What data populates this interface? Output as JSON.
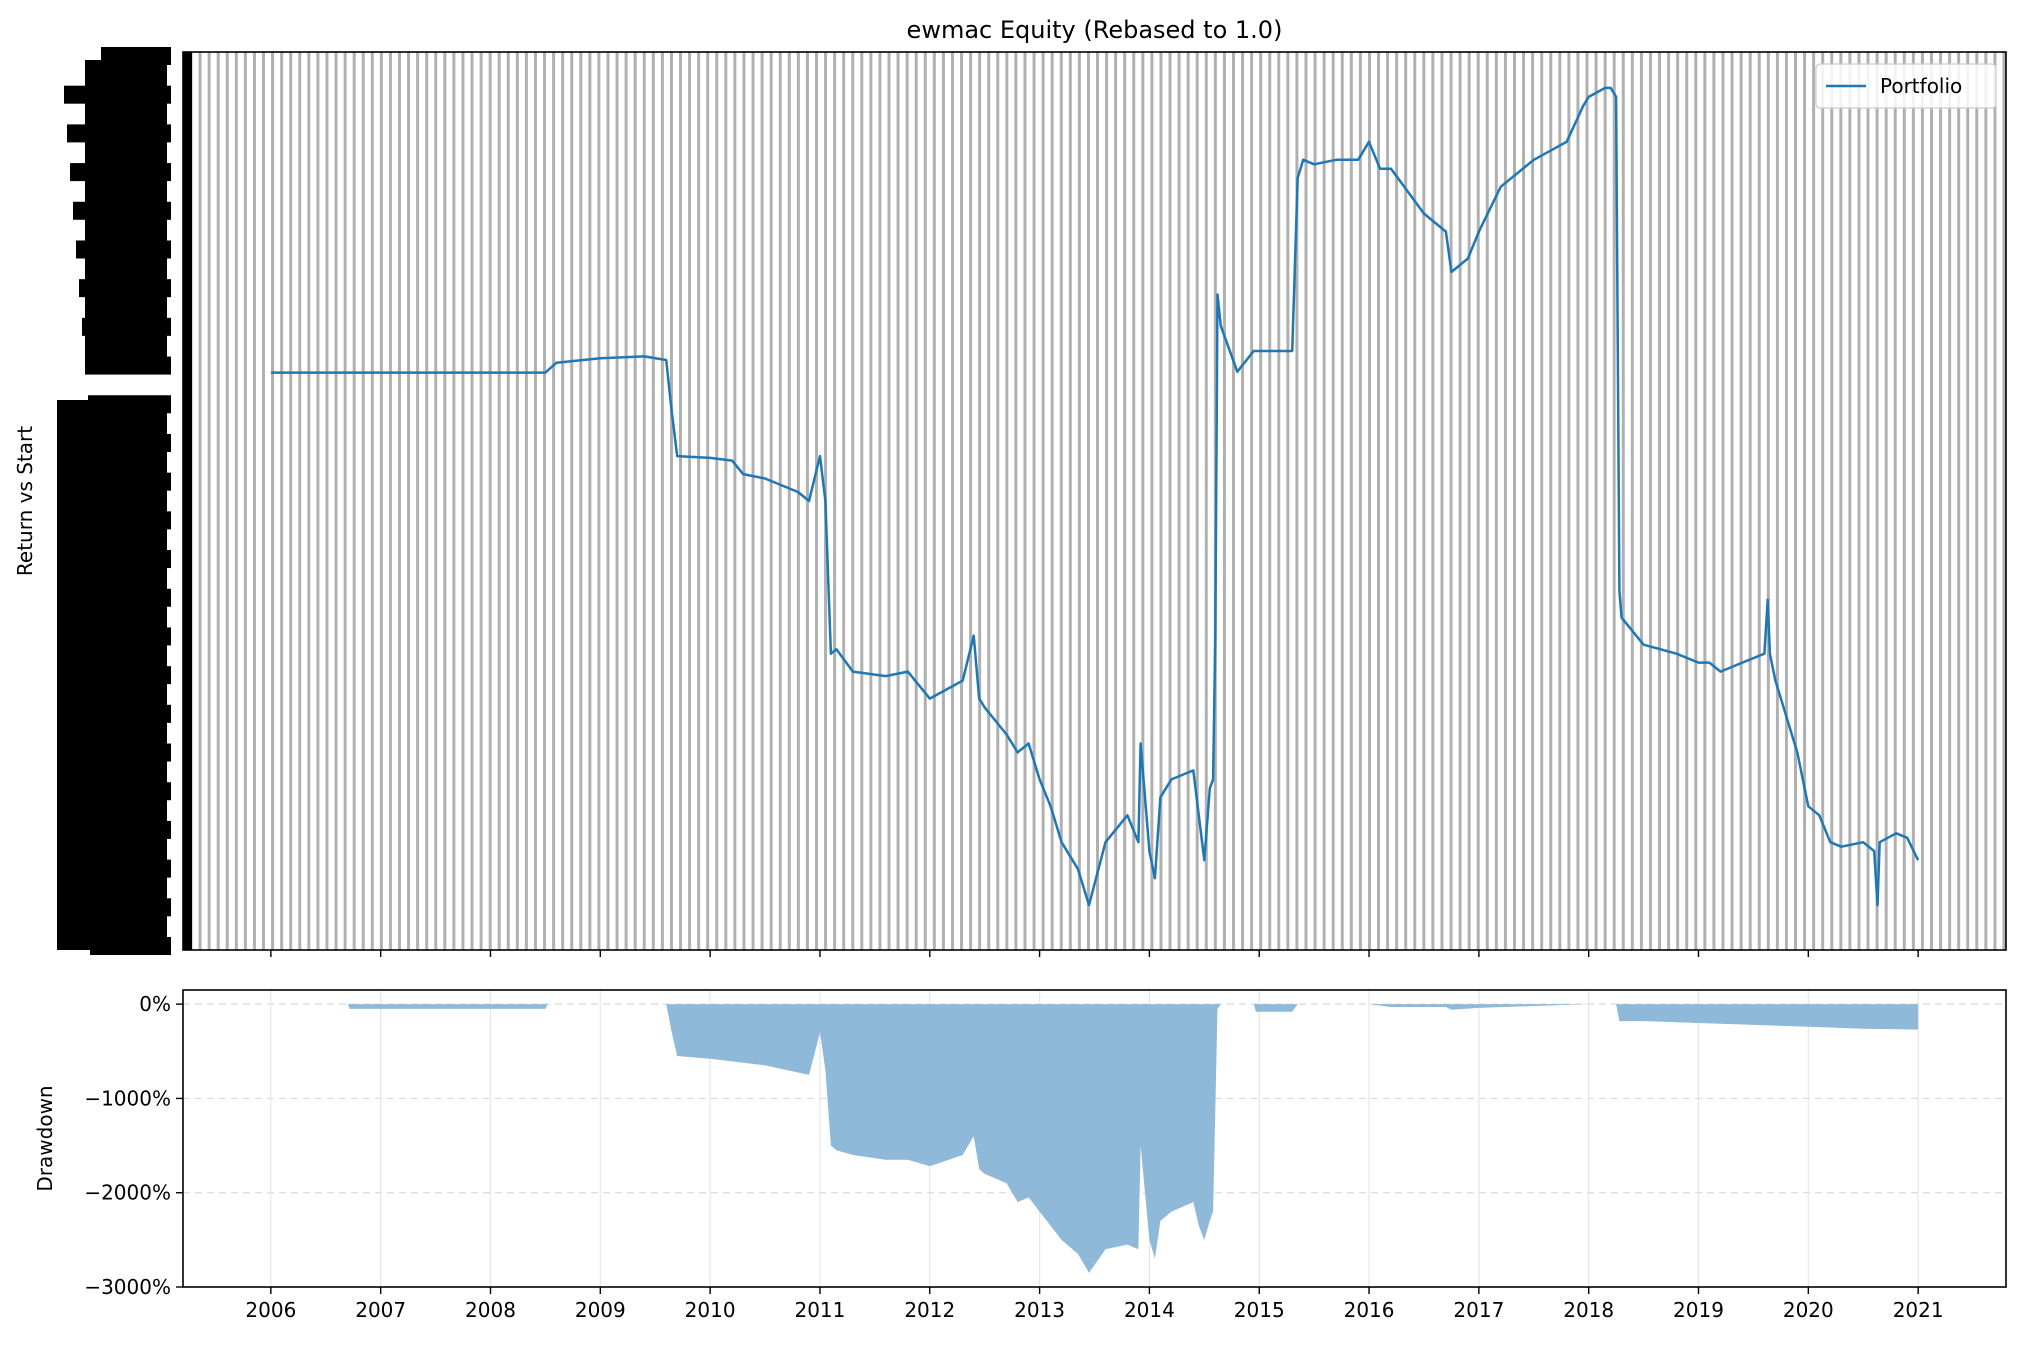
{
  "chart_data": [
    {
      "type": "line",
      "title": "ewmac Equity (Rebased to 1.0)",
      "ylabel": "Return vs Start",
      "xlabel": "",
      "xlim": [
        2005.2,
        2021.8
      ],
      "ylim": [
        0,
        1
      ],
      "grid": "vertical-dense",
      "legend": "top-right",
      "y_tick_labels_note": "overlapping illegible tick labels",
      "series": [
        {
          "name": "Portfolio",
          "color": "#1f77b4",
          "x": [
            2006.0,
            2006.7,
            2008.5,
            2008.6,
            2009.0,
            2009.4,
            2009.6,
            2009.65,
            2009.7,
            2010.0,
            2010.2,
            2010.3,
            2010.5,
            2010.8,
            2010.9,
            2011.0,
            2011.05,
            2011.1,
            2011.15,
            2011.3,
            2011.6,
            2011.8,
            2012.0,
            2012.3,
            2012.4,
            2012.45,
            2012.5,
            2012.7,
            2012.8,
            2012.9,
            2013.0,
            2013.1,
            2013.2,
            2013.35,
            2013.45,
            2013.6,
            2013.8,
            2013.9,
            2013.92,
            2014.0,
            2014.05,
            2014.1,
            2014.2,
            2014.4,
            2014.45,
            2014.5,
            2014.55,
            2014.58,
            2014.6,
            2014.62,
            2014.65,
            2014.8,
            2014.95,
            2015.0,
            2015.3,
            2015.35,
            2015.4,
            2015.5,
            2015.7,
            2015.9,
            2016.0,
            2016.1,
            2016.2,
            2016.5,
            2016.7,
            2016.75,
            2016.9,
            2017.0,
            2017.2,
            2017.5,
            2017.8,
            2017.95,
            2018.0,
            2018.15,
            2018.2,
            2018.25,
            2018.28,
            2018.3,
            2018.5,
            2018.8,
            2019.0,
            2019.1,
            2019.2,
            2019.4,
            2019.6,
            2019.63,
            2019.65,
            2019.7,
            2019.9,
            2020.0,
            2020.1,
            2020.2,
            2020.3,
            2020.5,
            2020.6,
            2020.63,
            2020.65,
            2020.8,
            2020.9,
            2021.0
          ],
          "y": [
            0.643,
            0.643,
            0.643,
            0.654,
            0.659,
            0.661,
            0.657,
            0.6,
            0.55,
            0.548,
            0.545,
            0.53,
            0.525,
            0.51,
            0.5,
            0.55,
            0.5,
            0.33,
            0.335,
            0.31,
            0.305,
            0.31,
            0.28,
            0.3,
            0.35,
            0.28,
            0.27,
            0.24,
            0.22,
            0.23,
            0.19,
            0.16,
            0.12,
            0.09,
            0.05,
            0.12,
            0.15,
            0.12,
            0.23,
            0.11,
            0.08,
            0.17,
            0.19,
            0.2,
            0.15,
            0.1,
            0.18,
            0.19,
            0.35,
            0.73,
            0.695,
            0.644,
            0.667,
            0.667,
            0.667,
            0.86,
            0.88,
            0.875,
            0.88,
            0.88,
            0.9,
            0.87,
            0.87,
            0.82,
            0.8,
            0.755,
            0.77,
            0.8,
            0.85,
            0.88,
            0.9,
            0.94,
            0.95,
            0.96,
            0.96,
            0.95,
            0.4,
            0.37,
            0.34,
            0.33,
            0.32,
            0.32,
            0.31,
            0.32,
            0.33,
            0.39,
            0.33,
            0.3,
            0.22,
            0.16,
            0.15,
            0.12,
            0.115,
            0.12,
            0.11,
            0.05,
            0.12,
            0.13,
            0.125,
            0.1
          ]
        }
      ]
    },
    {
      "type": "area",
      "ylabel": "Drawdown",
      "xlabel": "",
      "xlim": [
        2005.2,
        2021.8
      ],
      "ylim": [
        -3000,
        150
      ],
      "grid": "dashed",
      "y_ticks": [
        0,
        -1000,
        -2000,
        -3000
      ],
      "y_tick_labels": [
        "0%",
        "−1000%",
        "−2000%",
        "−3000%"
      ],
      "x_ticks": [
        2006,
        2007,
        2008,
        2009,
        2010,
        2011,
        2012,
        2013,
        2014,
        2015,
        2016,
        2017,
        2018,
        2019,
        2020,
        2021
      ],
      "x_tick_labels": [
        "2006",
        "2007",
        "2008",
        "2009",
        "2010",
        "2011",
        "2012",
        "2013",
        "2014",
        "2015",
        "2016",
        "2017",
        "2018",
        "2019",
        "2020",
        "2021"
      ],
      "color": "#8fb9d9",
      "series": [
        {
          "x": [
            2006.0,
            2006.7,
            2006.72,
            2008.5,
            2008.52,
            2009.6,
            2009.65,
            2009.7,
            2010.0,
            2010.5,
            2010.9,
            2011.0,
            2011.05,
            2011.1,
            2011.15,
            2011.3,
            2011.6,
            2011.8,
            2012.0,
            2012.3,
            2012.4,
            2012.45,
            2012.5,
            2012.7,
            2012.8,
            2012.9,
            2013.0,
            2013.1,
            2013.2,
            2013.35,
            2013.45,
            2013.6,
            2013.8,
            2013.9,
            2013.92,
            2014.0,
            2014.05,
            2014.1,
            2014.2,
            2014.4,
            2014.45,
            2014.5,
            2014.55,
            2014.58,
            2014.62,
            2014.65,
            2014.95,
            2014.97,
            2015.3,
            2015.35,
            2015.5,
            2016.0,
            2016.2,
            2016.7,
            2016.75,
            2017.0,
            2018.0,
            2018.25,
            2018.28,
            2018.5,
            2019.0,
            2019.5,
            2020.0,
            2020.5,
            2021.0
          ],
          "y": [
            0,
            0,
            -50,
            -50,
            0,
            0,
            -300,
            -550,
            -580,
            -650,
            -750,
            -300,
            -700,
            -1500,
            -1550,
            -1600,
            -1650,
            -1650,
            -1720,
            -1600,
            -1400,
            -1750,
            -1800,
            -1900,
            -2100,
            -2050,
            -2200,
            -2350,
            -2500,
            -2650,
            -2850,
            -2600,
            -2550,
            -2600,
            -1500,
            -2500,
            -2700,
            -2300,
            -2200,
            -2100,
            -2350,
            -2500,
            -2300,
            -2200,
            -50,
            0,
            0,
            -80,
            -80,
            0,
            0,
            0,
            -30,
            -30,
            -60,
            -40,
            0,
            0,
            -180,
            -180,
            -200,
            -220,
            -240,
            -260,
            -270
          ]
        }
      ]
    }
  ]
}
